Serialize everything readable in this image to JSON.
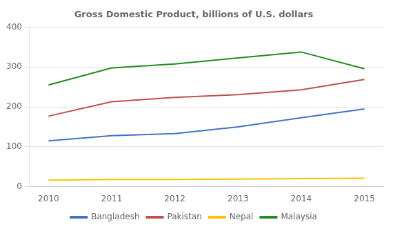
{
  "chart_data": {
    "type": "line",
    "title": "Gross Domestic Product, billions of U.S. dollars",
    "x": [
      2010,
      2011,
      2012,
      2013,
      2014,
      2015
    ],
    "series": [
      {
        "name": "Bangladesh",
        "color": "#4472C4",
        "values": [
          115,
          128,
          133,
          150,
          173,
          195
        ]
      },
      {
        "name": "Pakistan",
        "color": "#C0504D",
        "values": [
          177,
          213,
          224,
          231,
          243,
          269
        ]
      },
      {
        "name": "Nepal",
        "color": "#FFC000",
        "values": [
          16,
          18,
          18,
          19,
          20,
          21
        ]
      },
      {
        "name": "Malaysia",
        "color": "#228B22",
        "values": [
          255,
          298,
          308,
          323,
          338,
          296
        ]
      }
    ],
    "xlim": [
      2009.7,
      2015.3
    ],
    "xticks": [
      2010,
      2011,
      2012,
      2013,
      2014,
      2015
    ],
    "ylim": [
      0,
      400
    ],
    "yticks": [
      0,
      100,
      200,
      300,
      400
    ],
    "grid": "y",
    "legend": "bottom"
  }
}
